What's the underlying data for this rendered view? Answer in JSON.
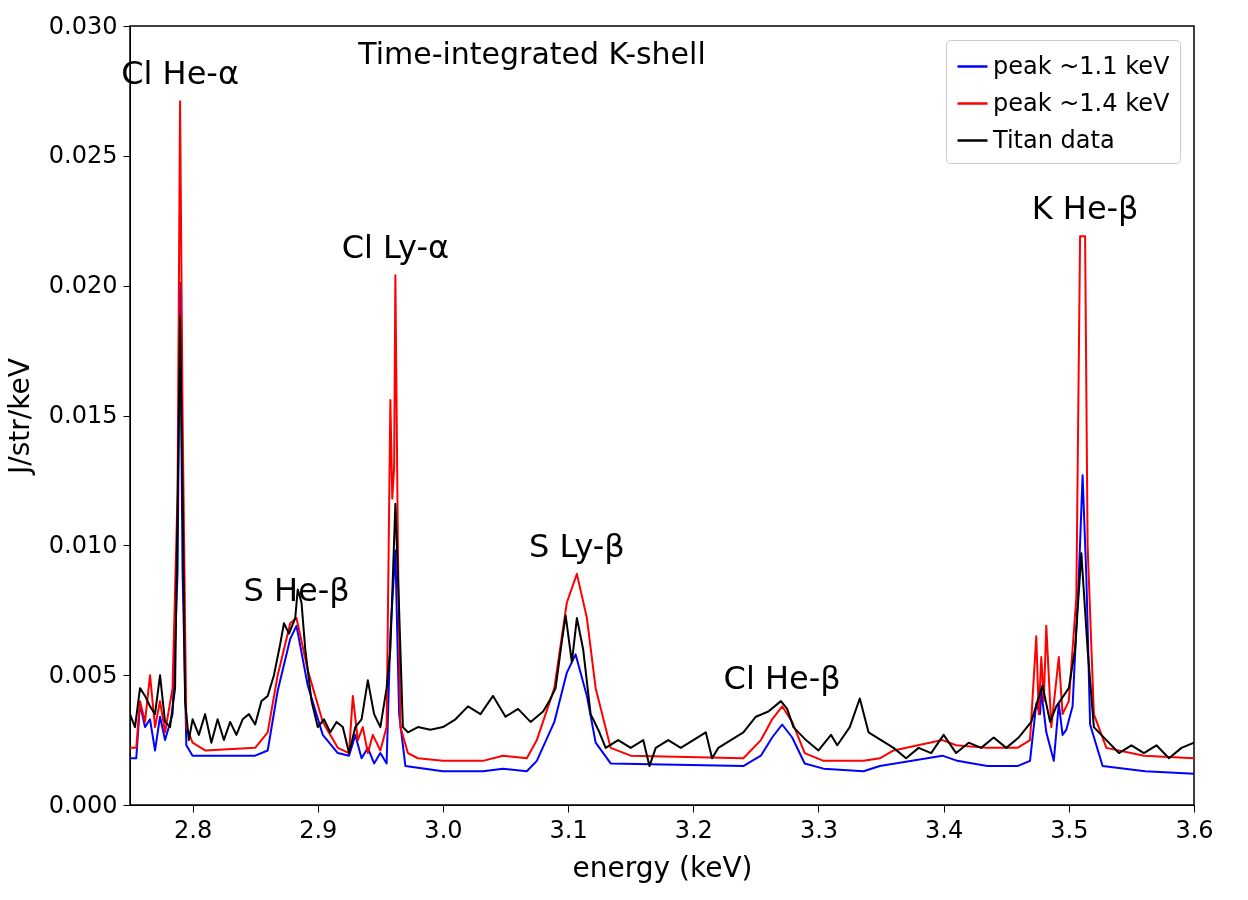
{
  "chart_data": {
    "type": "line",
    "title": "Time-integrated K-shell",
    "xlabel": "energy (keV)",
    "ylabel": "J/str/keV",
    "xlim": [
      2.75,
      3.6
    ],
    "xticks": [
      2.8,
      2.9,
      {
        "value": 3,
        "label": "3.0"
      },
      3.1,
      3.2,
      3.3,
      3.4,
      3.5,
      3.6
    ],
    "ylim": [
      0,
      0.03
    ],
    "yticks": [
      {
        "value": 0,
        "label": "0.000"
      },
      0.005,
      {
        "value": 0.01,
        "label": "0.010"
      },
      0.015,
      {
        "value": 0.02,
        "label": "0.020"
      },
      0.025,
      {
        "value": 0.03,
        "label": "0.030"
      }
    ],
    "grid": false,
    "legend": "top right",
    "line_style": "solid",
    "marker": "none",
    "annotations": [
      {
        "text": "Cl He-α",
        "x": 2.79,
        "y": 0.0271
      },
      {
        "text": "Cl Ly-α",
        "x": 2.962,
        "y": 0.0204
      },
      {
        "text": "S He-β",
        "x": 2.883,
        "y": 0.0072
      },
      {
        "text": "S Ly-β",
        "x": 3.107,
        "y": 0.0089
      },
      {
        "text": "Cl He-β",
        "x": 3.271,
        "y": 0.0038
      },
      {
        "text": "K He-β",
        "x": 3.513,
        "y": 0.0219
      }
    ],
    "series": [
      {
        "name": "peak ~1.1 keV",
        "color": "#0000ff",
        "x": [
          2.75,
          2.755,
          2.758,
          2.762,
          2.766,
          2.77,
          2.774,
          2.778,
          2.784,
          2.788,
          2.79,
          2.792,
          2.795,
          2.8,
          2.85,
          2.86,
          2.868,
          2.878,
          2.883,
          2.892,
          2.904,
          2.916,
          2.925,
          2.93,
          2.935,
          2.94,
          2.945,
          2.95,
          2.955,
          2.958,
          2.962,
          2.965,
          2.97,
          3.0,
          3.032,
          3.048,
          3.067,
          3.075,
          3.089,
          3.099,
          3.106,
          3.115,
          3.122,
          3.134,
          3.24,
          3.254,
          3.263,
          3.271,
          3.279,
          3.289,
          3.304,
          3.336,
          3.349,
          3.399,
          3.411,
          3.435,
          3.459,
          3.469,
          3.474,
          3.477,
          3.478,
          3.482,
          3.488,
          3.492,
          3.495,
          3.498,
          3.503,
          3.508,
          3.511,
          3.514,
          3.517,
          3.527,
          3.561,
          3.6
        ],
        "values": [
          0.0018,
          0.0018,
          0.0039,
          0.003,
          0.0033,
          0.0021,
          0.0034,
          0.0025,
          0.0035,
          0.009,
          0.0201,
          0.009,
          0.0023,
          0.0019,
          0.0019,
          0.0021,
          0.0044,
          0.0064,
          0.0069,
          0.0046,
          0.0027,
          0.002,
          0.0019,
          0.0027,
          0.0018,
          0.0022,
          0.0016,
          0.002,
          0.0016,
          0.0066,
          0.0098,
          0.0035,
          0.0015,
          0.0013,
          0.0013,
          0.0014,
          0.0013,
          0.0017,
          0.0032,
          0.0051,
          0.0058,
          0.0042,
          0.0024,
          0.0016,
          0.0015,
          0.0019,
          0.0026,
          0.0031,
          0.0026,
          0.0016,
          0.0014,
          0.0013,
          0.0015,
          0.0019,
          0.0017,
          0.0015,
          0.0015,
          0.0017,
          0.0039,
          0.0035,
          0.0044,
          0.0028,
          0.0017,
          0.0039,
          0.0027,
          0.0029,
          0.0038,
          0.0088,
          0.0127,
          0.0088,
          0.0031,
          0.0015,
          0.0013,
          0.0012
        ]
      },
      {
        "name": "peak ~1.4 keV",
        "color": "#ff0000",
        "x": [
          2.75,
          2.755,
          2.758,
          2.762,
          2.766,
          2.77,
          2.774,
          2.778,
          2.784,
          2.788,
          2.79,
          2.792,
          2.795,
          2.8,
          2.81,
          2.85,
          2.86,
          2.868,
          2.878,
          2.883,
          2.892,
          2.904,
          2.916,
          2.925,
          2.928,
          2.932,
          2.936,
          2.94,
          2.944,
          2.95,
          2.955,
          2.958,
          2.9595,
          2.961,
          2.962,
          2.964,
          2.966,
          2.972,
          2.98,
          3.0,
          3.032,
          3.048,
          3.067,
          3.075,
          3.089,
          3.099,
          3.107,
          3.115,
          3.122,
          3.134,
          3.15,
          3.24,
          3.254,
          3.263,
          3.271,
          3.279,
          3.289,
          3.304,
          3.336,
          3.349,
          3.36,
          3.399,
          3.41,
          3.435,
          3.459,
          3.469,
          3.474,
          3.476,
          3.478,
          3.48,
          3.482,
          3.486,
          3.492,
          3.495,
          3.5,
          3.506,
          3.509,
          3.513,
          3.515,
          3.52,
          3.53,
          3.56,
          3.6
        ],
        "values": [
          0.0022,
          0.0022,
          0.004,
          0.0032,
          0.005,
          0.003,
          0.004,
          0.0028,
          0.0045,
          0.012,
          0.0271,
          0.015,
          0.003,
          0.0024,
          0.0021,
          0.0022,
          0.0028,
          0.005,
          0.007,
          0.0072,
          0.0052,
          0.0032,
          0.0022,
          0.002,
          0.0042,
          0.0025,
          0.003,
          0.002,
          0.0027,
          0.0021,
          0.003,
          0.0156,
          0.0118,
          0.013,
          0.0204,
          0.01,
          0.003,
          0.002,
          0.0018,
          0.0017,
          0.0017,
          0.0019,
          0.0018,
          0.0025,
          0.0045,
          0.0078,
          0.0089,
          0.0072,
          0.0045,
          0.0022,
          0.0019,
          0.0018,
          0.0025,
          0.0033,
          0.0038,
          0.0032,
          0.002,
          0.0017,
          0.0017,
          0.0018,
          0.0021,
          0.0025,
          0.0023,
          0.0022,
          0.0022,
          0.0025,
          0.0065,
          0.0035,
          0.0057,
          0.004,
          0.0069,
          0.003,
          0.0057,
          0.0035,
          0.004,
          0.008,
          0.0219,
          0.0219,
          0.01,
          0.0035,
          0.0022,
          0.0019,
          0.0018
        ]
      },
      {
        "name": "Titan data",
        "color": "#000000",
        "x": [
          2.75,
          2.754,
          2.758,
          2.762,
          2.766,
          2.77,
          2.774,
          2.778,
          2.782,
          2.786,
          2.789,
          2.79,
          2.792,
          2.794,
          2.797,
          2.8,
          2.805,
          2.81,
          2.815,
          2.82,
          2.825,
          2.83,
          2.835,
          2.84,
          2.845,
          2.85,
          2.855,
          2.86,
          2.865,
          2.87,
          2.873,
          2.877,
          2.882,
          2.884,
          2.887,
          2.89,
          2.895,
          2.9,
          2.905,
          2.91,
          2.915,
          2.92,
          2.925,
          2.93,
          2.935,
          2.94,
          2.945,
          2.95,
          2.955,
          2.958,
          2.962,
          2.965,
          2.968,
          2.972,
          2.98,
          2.99,
          3.0,
          3.01,
          3.02,
          3.03,
          3.04,
          3.05,
          3.06,
          3.07,
          3.08,
          3.085,
          3.09,
          3.095,
          3.098,
          3.103,
          3.107,
          3.112,
          3.118,
          3.125,
          3.13,
          3.14,
          3.15,
          3.16,
          3.165,
          3.17,
          3.18,
          3.19,
          3.2,
          3.21,
          3.215,
          3.22,
          3.23,
          3.24,
          3.25,
          3.26,
          3.27,
          3.275,
          3.28,
          3.29,
          3.3,
          3.31,
          3.315,
          3.325,
          3.333,
          3.34,
          3.35,
          3.36,
          3.37,
          3.38,
          3.39,
          3.4,
          3.41,
          3.42,
          3.43,
          3.44,
          3.45,
          3.46,
          3.47,
          3.475,
          3.479,
          3.485,
          3.49,
          3.5,
          3.505,
          3.51,
          3.515,
          3.52,
          3.53,
          3.54,
          3.55,
          3.56,
          3.57,
          3.58,
          3.59,
          3.6
        ],
        "values": [
          0.0035,
          0.003,
          0.0045,
          0.0042,
          0.0038,
          0.0035,
          0.005,
          0.0032,
          0.003,
          0.0045,
          0.015,
          0.0188,
          0.012,
          0.004,
          0.0025,
          0.0033,
          0.0027,
          0.0035,
          0.0024,
          0.0033,
          0.0025,
          0.0032,
          0.0027,
          0.0033,
          0.0035,
          0.0031,
          0.004,
          0.0042,
          0.005,
          0.0062,
          0.007,
          0.0066,
          0.0072,
          0.0083,
          0.0078,
          0.006,
          0.004,
          0.003,
          0.0033,
          0.0028,
          0.0032,
          0.003,
          0.002,
          0.003,
          0.0033,
          0.0048,
          0.0035,
          0.003,
          0.0045,
          0.006,
          0.0116,
          0.0075,
          0.003,
          0.0028,
          0.003,
          0.0029,
          0.003,
          0.0033,
          0.0038,
          0.0035,
          0.0042,
          0.0034,
          0.0037,
          0.0032,
          0.0036,
          0.004,
          0.0045,
          0.0063,
          0.0073,
          0.0055,
          0.0072,
          0.006,
          0.0035,
          0.0028,
          0.0022,
          0.0025,
          0.0022,
          0.0025,
          0.0015,
          0.0022,
          0.0025,
          0.0022,
          0.0025,
          0.0028,
          0.0018,
          0.0022,
          0.0025,
          0.0028,
          0.0034,
          0.0036,
          0.004,
          0.0037,
          0.003,
          0.0025,
          0.0021,
          0.0027,
          0.0023,
          0.003,
          0.0041,
          0.0028,
          0.0025,
          0.0022,
          0.0018,
          0.0022,
          0.002,
          0.0027,
          0.002,
          0.0024,
          0.0022,
          0.0026,
          0.0022,
          0.0026,
          0.0032,
          0.004,
          0.0046,
          0.0032,
          0.0038,
          0.0045,
          0.006,
          0.0097,
          0.006,
          0.003,
          0.0025,
          0.002,
          0.0023,
          0.002,
          0.0023,
          0.0018,
          0.0022,
          0.0024
        ]
      }
    ]
  }
}
